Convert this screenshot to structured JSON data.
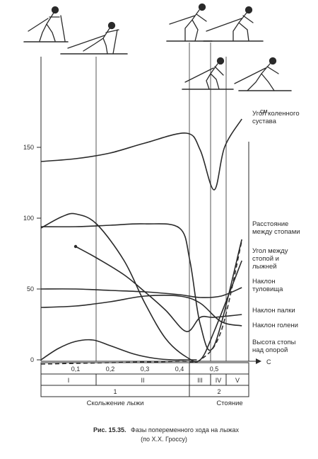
{
  "chart_data": {
    "type": "line",
    "y_unit": "см",
    "x_unit": "С",
    "yticks": [
      "150",
      "100",
      "50",
      "0"
    ],
    "xticks": [
      "0,1",
      "0,2",
      "0,3",
      "0,4",
      "0,5"
    ],
    "ylim": [
      0,
      170
    ],
    "xlim": [
      0,
      0.6
    ],
    "series": [
      {
        "name": "Угол коленного сустава",
        "style": "solid",
        "x": [
          0.0,
          0.1,
          0.2,
          0.3,
          0.42,
          0.46,
          0.5,
          0.53,
          0.58
        ],
        "y": [
          140,
          142,
          146,
          153,
          160,
          148,
          120,
          150,
          170
        ]
      },
      {
        "name": "Расстояние между стопами",
        "style": "solid",
        "x": [
          0.0,
          0.1,
          0.2,
          0.3,
          0.4,
          0.43,
          0.46,
          0.5,
          0.58
        ],
        "y": [
          94,
          94,
          95,
          96,
          93,
          70,
          25,
          10,
          85
        ]
      },
      {
        "name": "Угол между стопой и лыжней",
        "style": "solid",
        "x": [
          0.0,
          0.06,
          0.1,
          0.16,
          0.24,
          0.3,
          0.36,
          0.42,
          0.46,
          0.5,
          0.58
        ],
        "y": [
          93,
          101,
          103,
          96,
          70,
          40,
          15,
          2,
          0,
          20,
          70
        ]
      },
      {
        "name": "Наклон туловища",
        "style": "solid",
        "x": [
          0.0,
          0.1,
          0.2,
          0.3,
          0.4,
          0.46,
          0.52,
          0.58
        ],
        "y": [
          50,
          50,
          49,
          48,
          46,
          44,
          45,
          51
        ]
      },
      {
        "name": "Наклон палки",
        "style": "solid",
        "x": [
          0.1,
          0.16,
          0.24,
          0.3,
          0.36,
          0.42,
          0.46,
          0.5,
          0.58
        ],
        "y": [
          80,
          72,
          60,
          48,
          35,
          20,
          30,
          30,
          32
        ]
      },
      {
        "name": "Наклон голени",
        "style": "solid",
        "x": [
          0.0,
          0.1,
          0.2,
          0.3,
          0.4,
          0.46,
          0.52,
          0.58
        ],
        "y": [
          37,
          38,
          41,
          45,
          45,
          40,
          27,
          24
        ]
      },
      {
        "name": "Высота стопы над опорой",
        "style": "solid",
        "x": [
          0.0,
          0.05,
          0.1,
          0.15,
          0.2,
          0.27,
          0.33,
          0.38,
          0.42,
          0.45
        ],
        "y": [
          0,
          8,
          13,
          14,
          10,
          4,
          1,
          0,
          0,
          0
        ]
      },
      {
        "name": "",
        "style": "dashed",
        "x": [
          0.0,
          0.2,
          0.4,
          0.46,
          0.52,
          0.58
        ],
        "y": [
          -3,
          -2,
          -1,
          0,
          20,
          84
        ]
      }
    ]
  },
  "phase_table": {
    "row1": [
      "I",
      "II",
      "III",
      "IV",
      "V"
    ],
    "row2": [
      "1",
      "2"
    ],
    "row3": [
      "Скольжение лыжи",
      "Стояние"
    ]
  },
  "caption": {
    "number": "Рис. 15.35.",
    "text": "Фазы попеременного хода на лыжах",
    "source": "(по Х.Х. Гроссу)"
  },
  "figure_illustrations": [
    "skier-drawings"
  ]
}
